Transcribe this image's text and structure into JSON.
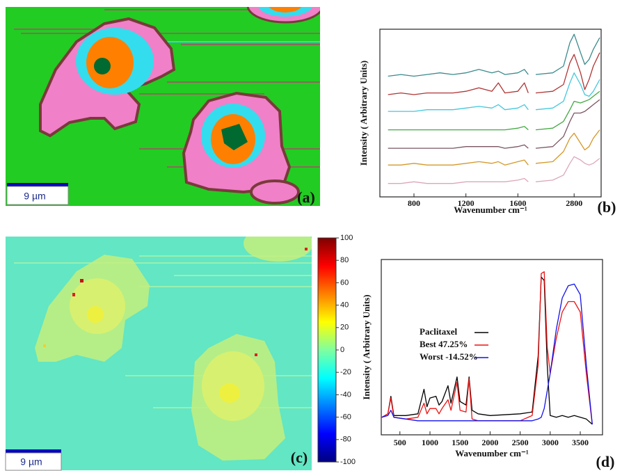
{
  "panels": [
    {
      "label": "(a)",
      "scale_bar": "9 µm"
    },
    {
      "label": "(c)",
      "scale_bar": "9 µm"
    }
  ],
  "colorbar": {
    "colormap": "jet",
    "lim": [
      -100,
      100
    ],
    "ticks": [
      100,
      80,
      60,
      40,
      20,
      0,
      -20,
      -40,
      -60,
      -80,
      -100
    ]
  },
  "chart_data": [
    {
      "type": "line",
      "label": "(b)",
      "xlabel": "Wavenumber cm⁻¹",
      "ylabel": "Intensity ( Arbitrary Units)",
      "xlim_segments": [
        [
          575,
          1700
        ],
        [
          2620,
          2920
        ]
      ],
      "xticks": [
        800,
        1200,
        1600,
        2800
      ],
      "ylim": [
        0,
        100
      ],
      "x": [
        600,
        700,
        800,
        900,
        1000,
        1100,
        1200,
        1300,
        1400,
        1450,
        1500,
        1600,
        1650,
        1680,
        2620,
        2700,
        2750,
        2780,
        2800,
        2830,
        2850,
        2870,
        2890,
        2920
      ],
      "series": [
        {
          "color": "#3a8a8c",
          "values": [
            72,
            73,
            72,
            73,
            74,
            73,
            74,
            76,
            74,
            75,
            73,
            74,
            76,
            73,
            73,
            74,
            78,
            92,
            97,
            86,
            79,
            82,
            88,
            95
          ]
        },
        {
          "color": "#b03434",
          "values": [
            61,
            62,
            61,
            62,
            62,
            62,
            63,
            65,
            63,
            68,
            62,
            63,
            68,
            62,
            62,
            63,
            67,
            80,
            85,
            74,
            64,
            70,
            78,
            86
          ]
        },
        {
          "color": "#44c8dc",
          "values": [
            51,
            51,
            51,
            52,
            52,
            52,
            53,
            54,
            53,
            55,
            52,
            53,
            55,
            52,
            52,
            53,
            57,
            68,
            74,
            67,
            61,
            60,
            63,
            70
          ]
        },
        {
          "color": "#44a844",
          "values": [
            40,
            40,
            40,
            40,
            40,
            40,
            40,
            40,
            40,
            40,
            40,
            41,
            42,
            40,
            40,
            41,
            45,
            52,
            57,
            56,
            57,
            58,
            60,
            63
          ]
        },
        {
          "color": "#7a5462",
          "values": [
            29,
            29,
            29,
            29,
            29,
            29,
            30,
            30,
            30,
            30,
            29,
            30,
            31,
            29,
            29,
            30,
            36,
            45,
            50,
            50,
            51,
            53,
            55,
            58
          ]
        },
        {
          "color": "#d4982a",
          "values": [
            19,
            19,
            20,
            19,
            19,
            19,
            20,
            21,
            20,
            21,
            19,
            21,
            22,
            19,
            20,
            21,
            27,
            35,
            38,
            32,
            28,
            30,
            35,
            40
          ]
        },
        {
          "color": "#dca6bc",
          "values": [
            8,
            8,
            9,
            8,
            8,
            8,
            9,
            9,
            9,
            9,
            9,
            10,
            11,
            9,
            9,
            10,
            13,
            20,
            24,
            22,
            20,
            19,
            20,
            23
          ]
        }
      ]
    },
    {
      "type": "line",
      "label": "(d)",
      "xlabel": "Wavenumber cm⁻¹",
      "ylabel": "Intensity ( Arbitrary Units)",
      "xlim": [
        190,
        3870
      ],
      "xticks": [
        500,
        1000,
        1500,
        2000,
        2500,
        3000,
        3500
      ],
      "ylim": [
        0,
        100
      ],
      "x": [
        200,
        300,
        350,
        400,
        600,
        800,
        900,
        950,
        1000,
        1100,
        1150,
        1200,
        1300,
        1350,
        1450,
        1500,
        1600,
        1650,
        1700,
        1800,
        2000,
        2500,
        2700,
        2800,
        2850,
        2900,
        2950,
        3000,
        3100,
        3200,
        3300,
        3400,
        3500,
        3600,
        3700
      ],
      "series": [
        {
          "name": "Paclitaxel",
          "color": "#000000",
          "values": [
            10,
            12,
            22,
            11,
            11,
            12,
            26,
            16,
            21,
            22,
            17,
            19,
            28,
            18,
            33,
            19,
            17,
            33,
            14,
            12,
            11,
            12,
            13,
            45,
            90,
            88,
            40,
            11,
            10,
            11,
            10,
            11,
            10,
            9,
            6
          ]
        },
        {
          "name": "Best 47.25%",
          "color": "#ee1111",
          "values": [
            10,
            12,
            21,
            10,
            9,
            10,
            18,
            12,
            15,
            15,
            12,
            15,
            20,
            14,
            30,
            14,
            13,
            32,
            9,
            8,
            8,
            8,
            11,
            40,
            92,
            93,
            50,
            35,
            55,
            70,
            76,
            76,
            70,
            35,
            6
          ]
        },
        {
          "name": "Worst -14.52%",
          "color": "#1111ee",
          "values": [
            10,
            11,
            14,
            10,
            9,
            8,
            8,
            8,
            8,
            8,
            8,
            8,
            8,
            8,
            8,
            8,
            8,
            8,
            8,
            8,
            8,
            8,
            8,
            9,
            10,
            15,
            25,
            35,
            60,
            78,
            85,
            86,
            80,
            40,
            6
          ]
        }
      ]
    }
  ]
}
